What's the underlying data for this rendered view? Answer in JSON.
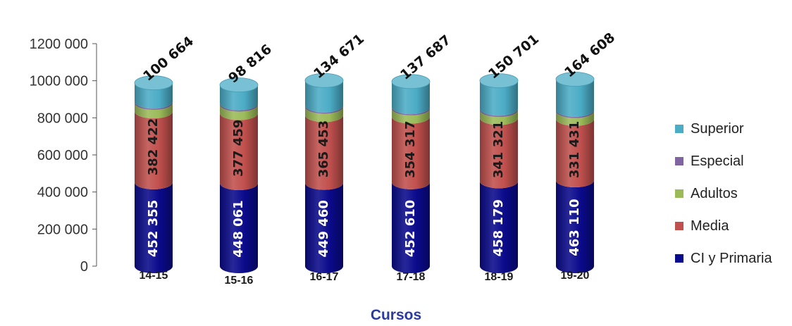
{
  "chart_data": {
    "type": "bar",
    "stacked": true,
    "xlabel": "Cursos",
    "ylim": [
      0,
      1200000
    ],
    "yticks": [
      0,
      200000,
      400000,
      600000,
      800000,
      1000000,
      1200000
    ],
    "ytick_labels": [
      "0",
      "200 000",
      "400 000",
      "600 000",
      "800 000",
      "1000 000",
      "1200 000"
    ],
    "categories": [
      "14-15",
      "15-16",
      "16-17",
      "17-18",
      "18-19",
      "19-20"
    ],
    "legend_position": "right",
    "grid": false,
    "series": [
      {
        "name": "CI y Primaria",
        "color": "#0a0a8c",
        "values": [
          452355,
          448061,
          449460,
          452610,
          458179,
          463110
        ],
        "labels": [
          "452 355",
          "448 061",
          "449 460",
          "452 610",
          "458 179",
          "463 110"
        ]
      },
      {
        "name": "Media",
        "color": "#c0504d",
        "values": [
          382422,
          377459,
          365453,
          354317,
          341321,
          331431
        ],
        "labels": [
          "382 422",
          "377 459",
          "365 453",
          "354 317",
          "341 321",
          "331 431"
        ]
      },
      {
        "name": "Adultos",
        "color": "#9bbb59",
        "values": [
          46000,
          46000,
          45000,
          44000,
          43000,
          42000
        ],
        "labels": []
      },
      {
        "name": "Especial",
        "color": "#8064a2",
        "values": [
          7000,
          7000,
          7000,
          7000,
          7000,
          7000
        ],
        "labels": []
      },
      {
        "name": "Superior",
        "color": "#4bacc6",
        "values": [
          100664,
          98816,
          134671,
          137687,
          150701,
          164608
        ],
        "labels": [
          "100 664",
          "98 816",
          "134 671",
          "137 687",
          "150 701",
          "164 608"
        ]
      }
    ]
  }
}
